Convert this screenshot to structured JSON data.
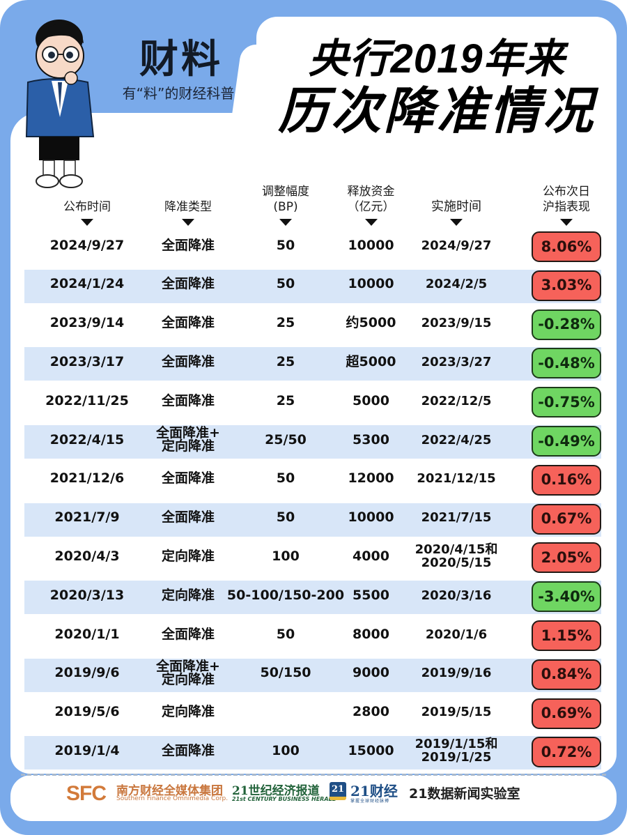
{
  "brand": {
    "name": "财料",
    "tagline": "有“料”的财经科普"
  },
  "headline": {
    "line1": "央行2019年来",
    "line2": "历次降准情况"
  },
  "colors": {
    "frame_blue": "#7aaaea",
    "row_alt": "#d8e6f8",
    "badge_up": "#f6625a",
    "badge_down": "#6fd662"
  },
  "table": {
    "columns": [
      {
        "label": "公布时间"
      },
      {
        "label": "降准类型"
      },
      {
        "label": "调整幅度\n(BP)"
      },
      {
        "label": "释放资金\n（亿元）"
      },
      {
        "label": "实施时间"
      },
      {
        "label": "公布次日\n沪指表现"
      }
    ],
    "rows": [
      {
        "announce": "2024/9/27",
        "type": "全面降准",
        "bp": "50",
        "funds": "10000",
        "effective": "2024/9/27",
        "sh_index": "8.06%",
        "trend": "up"
      },
      {
        "announce": "2024/1/24",
        "type": "全面降准",
        "bp": "50",
        "funds": "10000",
        "effective": "2024/2/5",
        "sh_index": "3.03%",
        "trend": "up"
      },
      {
        "announce": "2023/9/14",
        "type": "全面降准",
        "bp": "25",
        "funds": "约5000",
        "effective": "2023/9/15",
        "sh_index": "-0.28%",
        "trend": "down"
      },
      {
        "announce": "2023/3/17",
        "type": "全面降准",
        "bp": "25",
        "funds": "超5000",
        "effective": "2023/3/27",
        "sh_index": "-0.48%",
        "trend": "down"
      },
      {
        "announce": "2022/11/25",
        "type": "全面降准",
        "bp": "25",
        "funds": "5000",
        "effective": "2022/12/5",
        "sh_index": "-0.75%",
        "trend": "down"
      },
      {
        "announce": "2022/4/15",
        "type": "全面降准+\n定向降准",
        "bp": "25/50",
        "funds": "5300",
        "effective": "2022/4/25",
        "sh_index": "-0.49%",
        "trend": "down"
      },
      {
        "announce": "2021/12/6",
        "type": "全面降准",
        "bp": "50",
        "funds": "12000",
        "effective": "2021/12/15",
        "sh_index": "0.16%",
        "trend": "up"
      },
      {
        "announce": "2021/7/9",
        "type": "全面降准",
        "bp": "50",
        "funds": "10000",
        "effective": "2021/7/15",
        "sh_index": "0.67%",
        "trend": "up"
      },
      {
        "announce": "2020/4/3",
        "type": "定向降准",
        "bp": "100",
        "funds": "4000",
        "effective": "2020/4/15和\n2020/5/15",
        "sh_index": "2.05%",
        "trend": "up"
      },
      {
        "announce": "2020/3/13",
        "type": "定向降准",
        "bp": "50-100/150-200",
        "funds": "5500",
        "effective": "2020/3/16",
        "sh_index": "-3.40%",
        "trend": "down"
      },
      {
        "announce": "2020/1/1",
        "type": "全面降准",
        "bp": "50",
        "funds": "8000",
        "effective": "2020/1/6",
        "sh_index": "1.15%",
        "trend": "up"
      },
      {
        "announce": "2019/9/6",
        "type": "全面降准+\n定向降准",
        "bp": "50/150",
        "funds": "9000",
        "effective": "2019/9/16",
        "sh_index": "0.84%",
        "trend": "up"
      },
      {
        "announce": "2019/5/6",
        "type": "定向降准",
        "bp": "",
        "funds": "2800",
        "effective": "2019/5/15",
        "sh_index": "0.69%",
        "trend": "up"
      },
      {
        "announce": "2019/1/4",
        "type": "全面降准",
        "bp": "100",
        "funds": "15000",
        "effective": "2019/1/15和\n2019/1/25",
        "sh_index": "0.72%",
        "trend": "up"
      }
    ]
  },
  "footer": {
    "sfc_mark": "SFC",
    "sfc_cn": "南方财经全媒体集团",
    "sfc_en": "Southern Finance Omnimedia Corp.",
    "c21_cn": "21世纪经济报道",
    "c21_en": "21st CENTURY BUSINESS HERALD",
    "cj_mark": "21",
    "cj_name": "21财经",
    "cj_sub": "掌握全球财经脉搏",
    "lab": "21数据新闻实验室"
  },
  "chart_data": {
    "type": "table",
    "title": "央行2019年来历次降准情况",
    "columns": [
      "公布时间",
      "降准类型",
      "调整幅度(BP)",
      "释放资金（亿元）",
      "实施时间",
      "公布次日沪指表现"
    ],
    "rows": [
      [
        "2024/9/27",
        "全面降准",
        "50",
        "10000",
        "2024/9/27",
        "8.06%"
      ],
      [
        "2024/1/24",
        "全面降准",
        "50",
        "10000",
        "2024/2/5",
        "3.03%"
      ],
      [
        "2023/9/14",
        "全面降准",
        "25",
        "约5000",
        "2023/9/15",
        "-0.28%"
      ],
      [
        "2023/3/17",
        "全面降准",
        "25",
        "超5000",
        "2023/3/27",
        "-0.48%"
      ],
      [
        "2022/11/25",
        "全面降准",
        "25",
        "5000",
        "2022/12/5",
        "-0.75%"
      ],
      [
        "2022/4/15",
        "全面降准+定向降准",
        "25/50",
        "5300",
        "2022/4/25",
        "-0.49%"
      ],
      [
        "2021/12/6",
        "全面降准",
        "50",
        "12000",
        "2021/12/15",
        "0.16%"
      ],
      [
        "2021/7/9",
        "全面降准",
        "50",
        "10000",
        "2021/7/15",
        "0.67%"
      ],
      [
        "2020/4/3",
        "定向降准",
        "100",
        "4000",
        "2020/4/15和2020/5/15",
        "2.05%"
      ],
      [
        "2020/3/13",
        "定向降准",
        "50-100/150-200",
        "5500",
        "2020/3/16",
        "-3.40%"
      ],
      [
        "2020/1/1",
        "全面降准",
        "50",
        "8000",
        "2020/1/6",
        "1.15%"
      ],
      [
        "2019/9/6",
        "全面降准+定向降准",
        "50/150",
        "9000",
        "2019/9/16",
        "0.84%"
      ],
      [
        "2019/5/6",
        "定向降准",
        "",
        "2800",
        "2019/5/15",
        "0.69%"
      ],
      [
        "2019/1/4",
        "全面降准",
        "100",
        "15000",
        "2019/1/15和2019/1/25",
        "0.72%"
      ]
    ]
  }
}
